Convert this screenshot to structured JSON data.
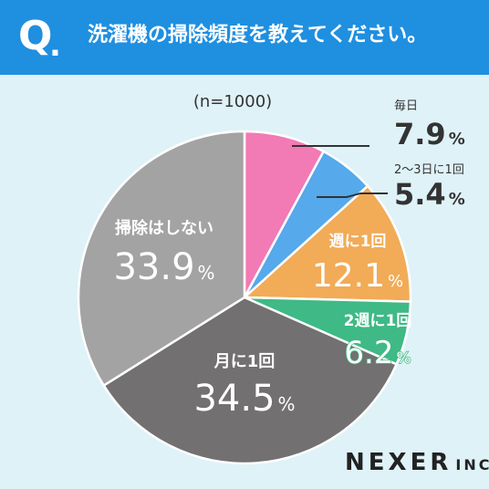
{
  "header": {
    "q_mark": "Q",
    "q_dot": ".",
    "question": "洗濯機の掃除頻度を教えてください。"
  },
  "logo": {
    "main": "NEXER",
    "suffix": "INC."
  },
  "chart_data": {
    "type": "pie",
    "sample": "(n=1000)",
    "unit": "%",
    "start": "12 o'clock, clockwise",
    "slices": [
      {
        "label": "毎日",
        "value": 7.9,
        "value_text": "7.9",
        "color": "#f27ab5",
        "text_color": "#333333",
        "label_position": "outside"
      },
      {
        "label": "2〜3日に1回",
        "value": 5.4,
        "value_text": "5.4",
        "color": "#56a9ea",
        "text_color": "#333333",
        "label_position": "outside"
      },
      {
        "label": "週に1回",
        "value": 12.1,
        "value_text": "12.1",
        "color": "#f2ab57",
        "text_color": "#ffffff",
        "label_position": "inside"
      },
      {
        "label": "2週に1回",
        "value": 6.2,
        "value_text": "6.2",
        "color": "#3fb985",
        "text_color": "#ffffff",
        "value_stroke": "#3fb985",
        "label_position": "inside"
      },
      {
        "label": "月に1回",
        "value": 34.5,
        "value_text": "34.5",
        "color": "#727071",
        "text_color": "#ffffff",
        "label_position": "inside"
      },
      {
        "label": "掃除はしない",
        "value": 33.9,
        "value_text": "33.9",
        "color": "#a3a3a3",
        "text_color": "#ffffff",
        "label_position": "inside"
      }
    ]
  }
}
